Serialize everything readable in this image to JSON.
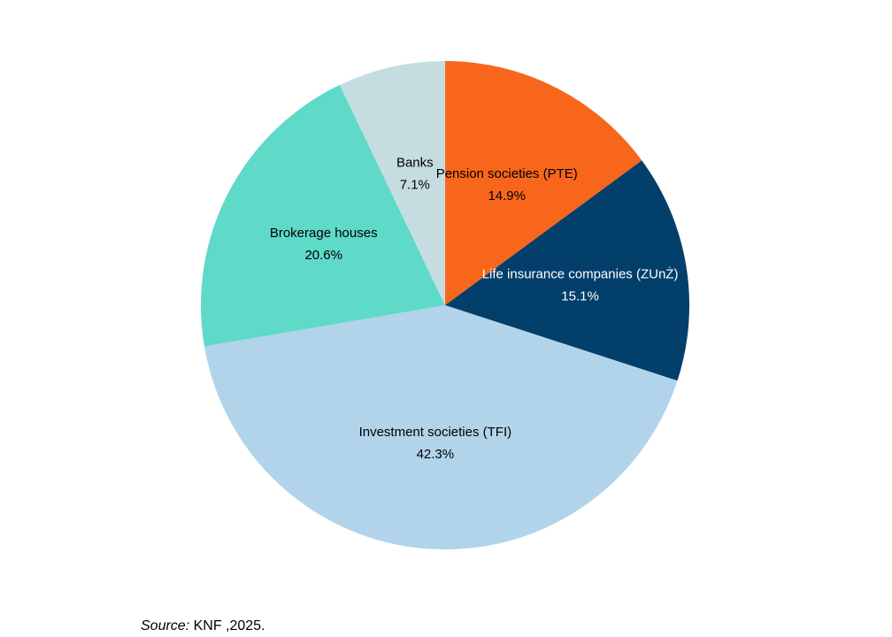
{
  "chart_data": {
    "type": "pie",
    "title": "",
    "start_angle": "12 o'clock",
    "direction": "clockwise",
    "slices": [
      {
        "label": "Pension societies (PTE)",
        "value": 14.9,
        "value_label": "14.9%",
        "color": "#F8661B",
        "label_color": "#000000"
      },
      {
        "label": "Life insurance companies (ZUnŻ)",
        "value": 15.1,
        "value_label": "15.1%",
        "color": "#033F6B",
        "label_color": "#ffffff"
      },
      {
        "label": "Investment societies (TFI)",
        "value": 42.3,
        "value_label": "42.3%",
        "color": "#B1D4EA",
        "label_color": "#000000"
      },
      {
        "label": "Brokerage houses",
        "value": 20.6,
        "value_label": "20.6%",
        "color": "#5FD9C8",
        "label_color": "#000000"
      },
      {
        "label": "Banks",
        "value": 7.1,
        "value_label": "7.1%",
        "color": "#C5DDE1",
        "label_color": "#000000"
      }
    ]
  },
  "source": {
    "prefix": "Source:",
    "text": " KNF ,2025."
  }
}
